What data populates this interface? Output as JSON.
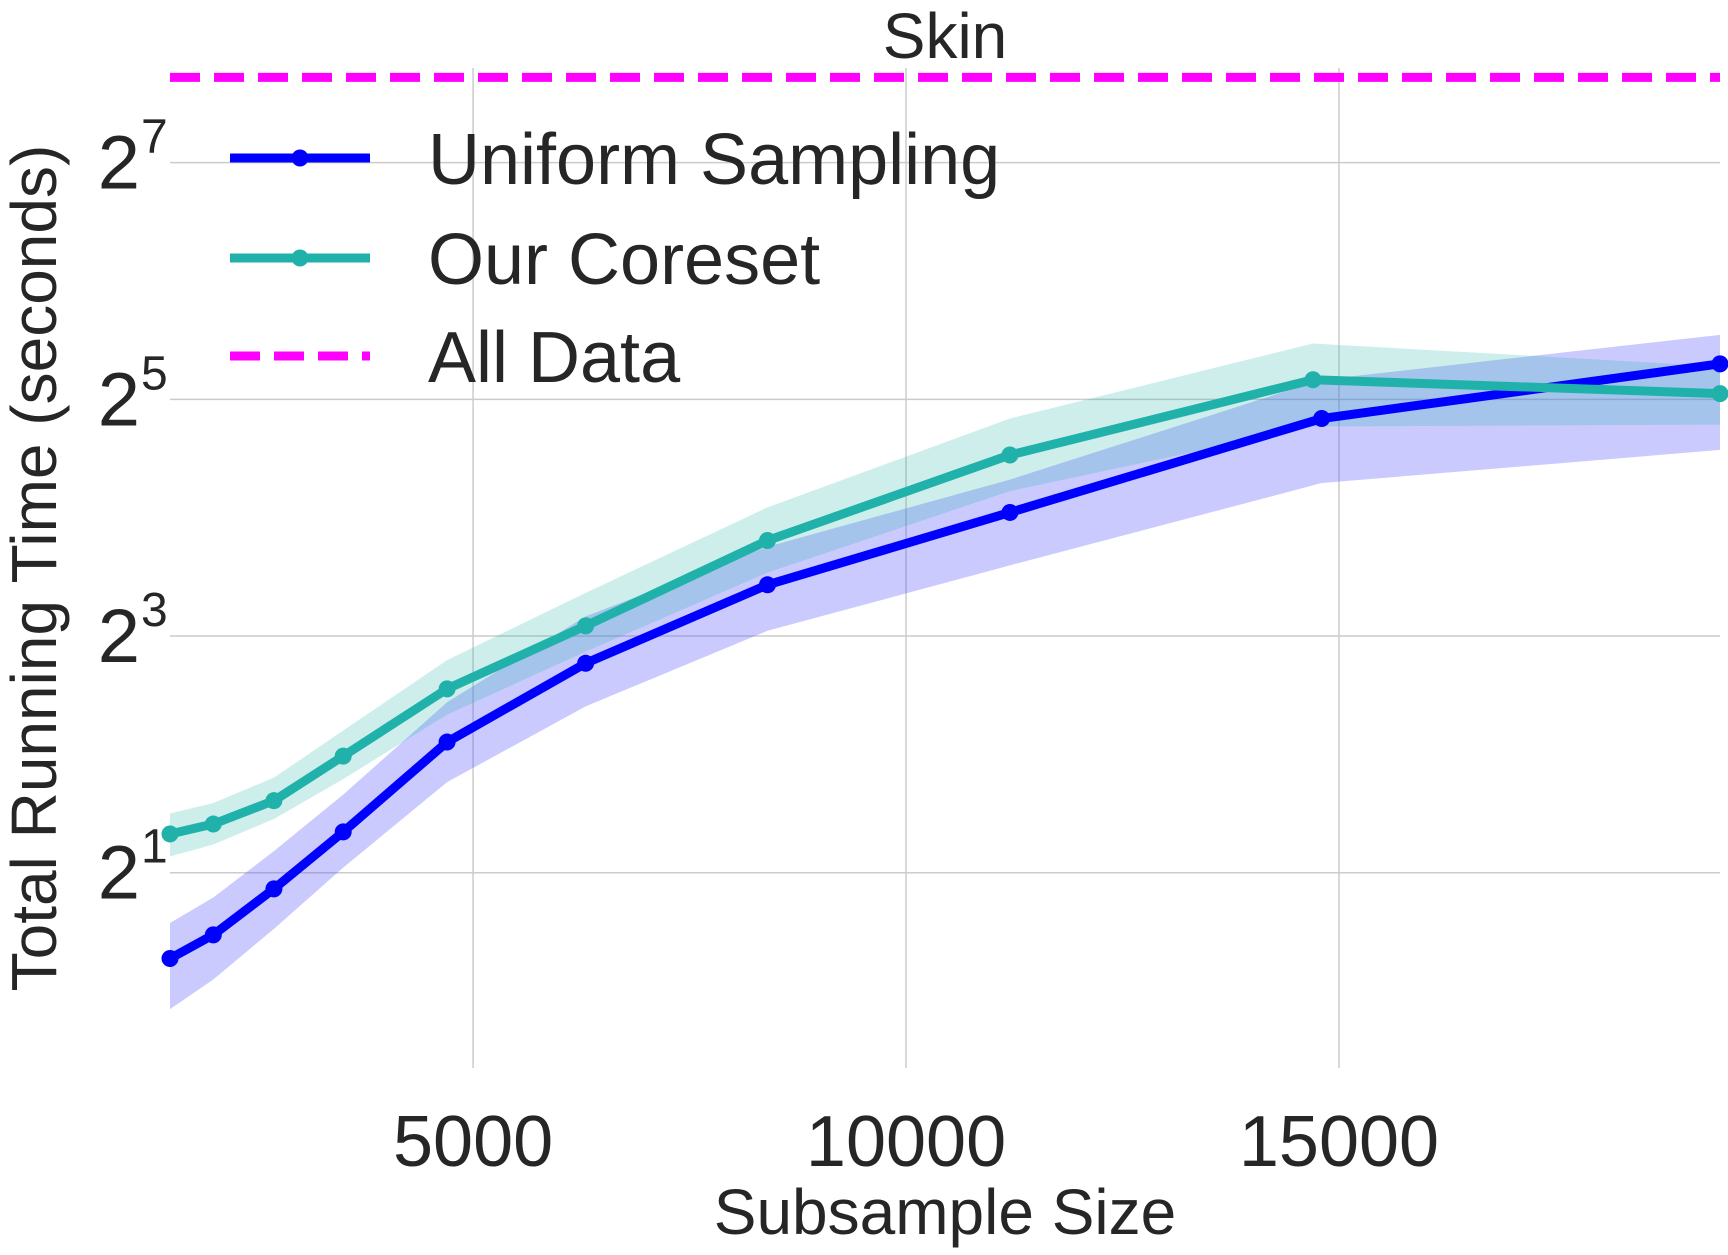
{
  "chart_data": {
    "type": "line",
    "title": "Skin",
    "xlabel": "Subsample Size",
    "ylabel": "Total Running Time (seconds)",
    "xlim": [
      1500,
      19400
    ],
    "ylim_log2": [
      -0.65,
      7.8
    ],
    "y_scale": "log2",
    "grid": true,
    "legend_position": "top-left",
    "x_ticks": [
      {
        "value": 5000,
        "label": "5000"
      },
      {
        "value": 10000,
        "label": "10000"
      },
      {
        "value": 15000,
        "label": "15000"
      }
    ],
    "y_ticks": [
      {
        "exponent": 1,
        "base": "2",
        "sup": "1"
      },
      {
        "exponent": 3,
        "base": "2",
        "sup": "3"
      },
      {
        "exponent": 5,
        "base": "2",
        "sup": "5"
      },
      {
        "exponent": 7,
        "base": "2",
        "sup": "7"
      }
    ],
    "series": [
      {
        "name": "Uniform Sampling",
        "color": "#0000ff",
        "marker": "circle",
        "x": [
          1500,
          2000,
          2700,
          3500,
          4700,
          6300,
          8400,
          11200,
          14800,
          19400
        ],
        "y": [
          1.21,
          1.39,
          1.82,
          2.54,
          4.3,
          6.82,
          10.8,
          16.5,
          28.6,
          39.4
        ],
        "y_lower": [
          0.9,
          1.07,
          1.44,
          2.06,
          3.4,
          5.3,
          8.25,
          12.1,
          19.6,
          23.8
        ],
        "y_upper": [
          1.49,
          1.73,
          2.27,
          3.16,
          5.43,
          8.98,
          13.5,
          20.0,
          35.9,
          46.7
        ]
      },
      {
        "name": "Our Coreset",
        "color": "#20b2aa",
        "marker": "circle",
        "x": [
          1500,
          2000,
          2700,
          3500,
          4700,
          6300,
          8400,
          11200,
          14700,
          19400
        ],
        "y": [
          2.51,
          2.66,
          3.05,
          3.96,
          5.87,
          8.49,
          14.0,
          23.1,
          35.9,
          33.1
        ],
        "y_lower": [
          2.2,
          2.36,
          2.74,
          3.46,
          5.05,
          7.3,
          11.6,
          18.7,
          27.3,
          27.6
        ],
        "y_upper": [
          2.83,
          3.01,
          3.49,
          4.6,
          6.95,
          10.3,
          17.0,
          28.6,
          44.4,
          38.8
        ]
      },
      {
        "name": "All Data",
        "color": "#ff00ff",
        "style": "dashed",
        "constant_y": 211
      }
    ]
  }
}
